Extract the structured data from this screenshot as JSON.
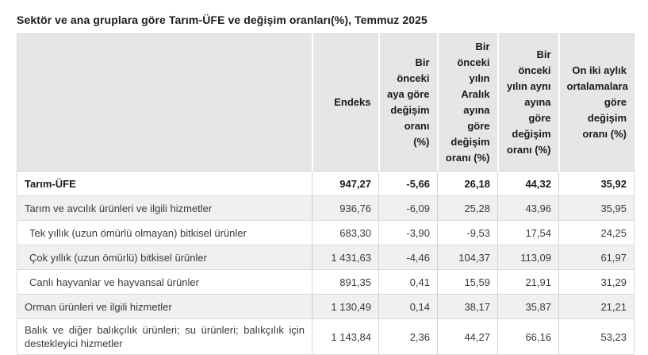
{
  "title": "Sektör ve ana gruplara göre Tarım-ÜFE ve değişim oranları(%), Temmuz 2025",
  "chart_data": {
    "type": "table",
    "title": "Sektör ve ana gruplara göre Tarım-ÜFE ve değişim oranları(%), Temmuz 2025",
    "columns": [
      "",
      "Endeks",
      "Bir önceki aya göre değişim oranı (%)",
      "Bir önceki yılın Aralık ayına göre değişim oranı (%)",
      "Bir önceki yılın aynı ayına göre değişim oranı (%)",
      "On iki aylık ortalamalara göre değişim oranı (%)"
    ],
    "rows": [
      {
        "label": "Tarım-ÜFE",
        "bold": true,
        "indent": false,
        "values": [
          "947,27",
          "-5,66",
          "26,18",
          "44,32",
          "35,92"
        ]
      },
      {
        "label": "Tarım ve avcılık ürünleri ve ilgili hizmetler",
        "bold": false,
        "indent": false,
        "values": [
          "936,76",
          "-6,09",
          "25,28",
          "43,96",
          "35,95"
        ]
      },
      {
        "label": "Tek yıllık (uzun ömürlü olmayan) bitkisel ürünler",
        "bold": false,
        "indent": true,
        "values": [
          "683,30",
          "-3,90",
          "-9,53",
          "17,54",
          "24,25"
        ]
      },
      {
        "label": "Çok yıllık (uzun ömürlü) bitkisel ürünler",
        "bold": false,
        "indent": true,
        "values": [
          "1 431,63",
          "-4,46",
          "104,37",
          "113,09",
          "61,97"
        ]
      },
      {
        "label": "Canlı hayvanlar ve hayvansal ürünler",
        "bold": false,
        "indent": true,
        "values": [
          "891,35",
          "0,41",
          "15,59",
          "21,91",
          "31,29"
        ]
      },
      {
        "label": "Orman ürünleri ve ilgili hizmetler",
        "bold": false,
        "indent": false,
        "values": [
          "1 130,49",
          "0,14",
          "38,17",
          "35,87",
          "21,21"
        ]
      },
      {
        "label": "Balık ve diğer balıkçılık ürünleri; su ürünleri; balıkçılık için destekleyici hizmetler",
        "bold": false,
        "indent": false,
        "values": [
          "1 143,84",
          "2,36",
          "44,27",
          "66,16",
          "53,23"
        ]
      }
    ]
  },
  "colors": {
    "header_bg": "#e6e6e6",
    "stripe_bg": "#f0f0f0",
    "border": "#d9d9d9",
    "body_text": "#3a3a3a",
    "title_text": "#1c1c1c"
  }
}
